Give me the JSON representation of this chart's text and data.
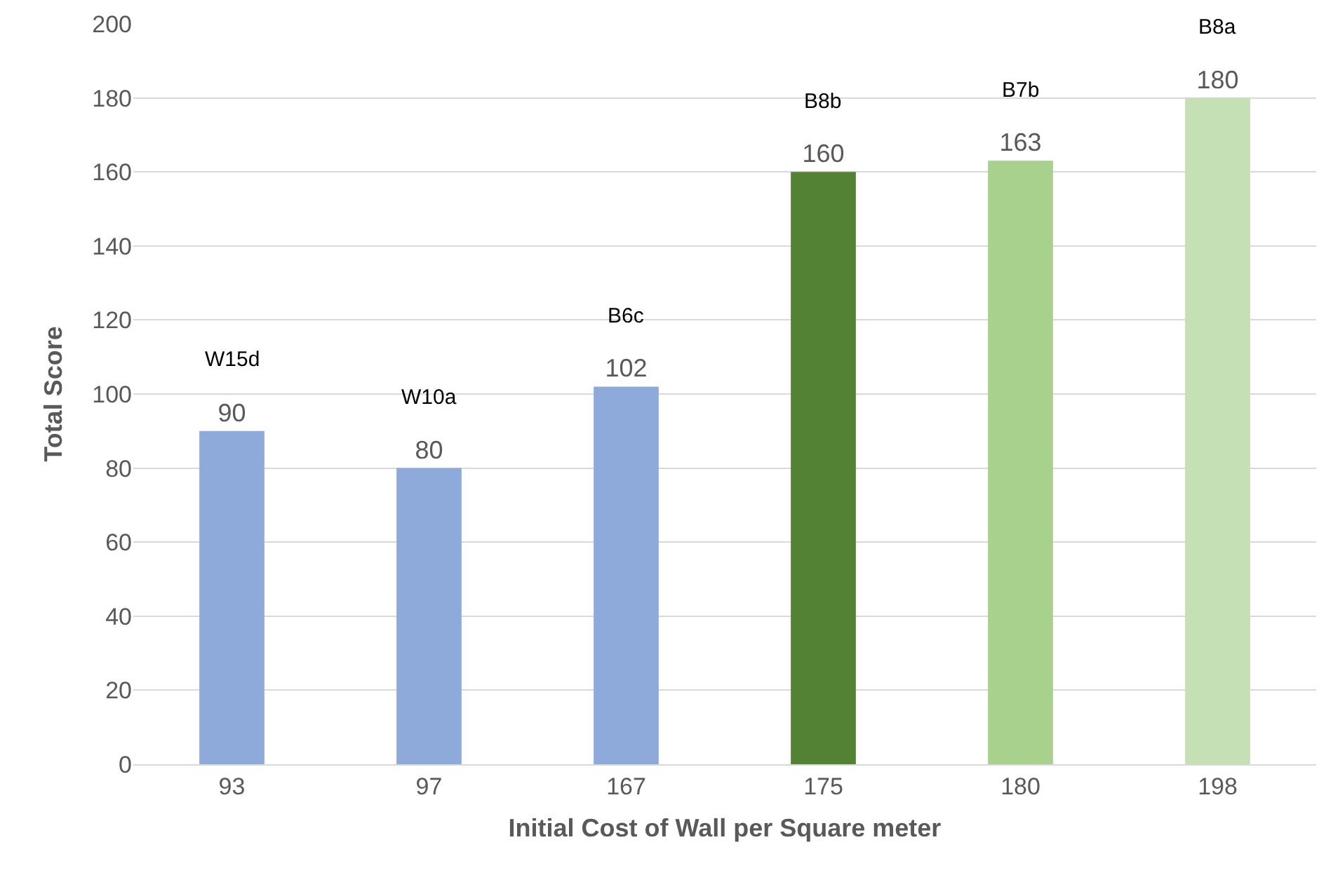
{
  "chart_data": {
    "type": "bar",
    "xlabel": "Initial Cost of Wall per Square meter",
    "ylabel": "Total Score",
    "categories": [
      "93",
      "97",
      "167",
      "175",
      "180",
      "198"
    ],
    "values": [
      90,
      80,
      102,
      160,
      163,
      180
    ],
    "colors": [
      "#8eaadb",
      "#8eaadb",
      "#8eaadb",
      "#548235",
      "#a9d18e",
      "#c5e0b4"
    ],
    "ylim": [
      0,
      200
    ],
    "yticks": [
      0,
      20,
      40,
      60,
      80,
      100,
      120,
      140,
      160,
      180,
      200
    ],
    "grid": "y",
    "data_labels": true,
    "annotations": [
      {
        "text": "W15d",
        "x": "93",
        "y": 90
      },
      {
        "text": "W10a",
        "x": "97",
        "y": 80
      },
      {
        "text": "B6c",
        "x": "167",
        "y": 102
      },
      {
        "text": "B8b",
        "x": "175",
        "y": 160
      },
      {
        "text": "B7b",
        "x": "180",
        "y": 163
      },
      {
        "text": "B8a",
        "x": "198",
        "y": 180
      }
    ]
  }
}
